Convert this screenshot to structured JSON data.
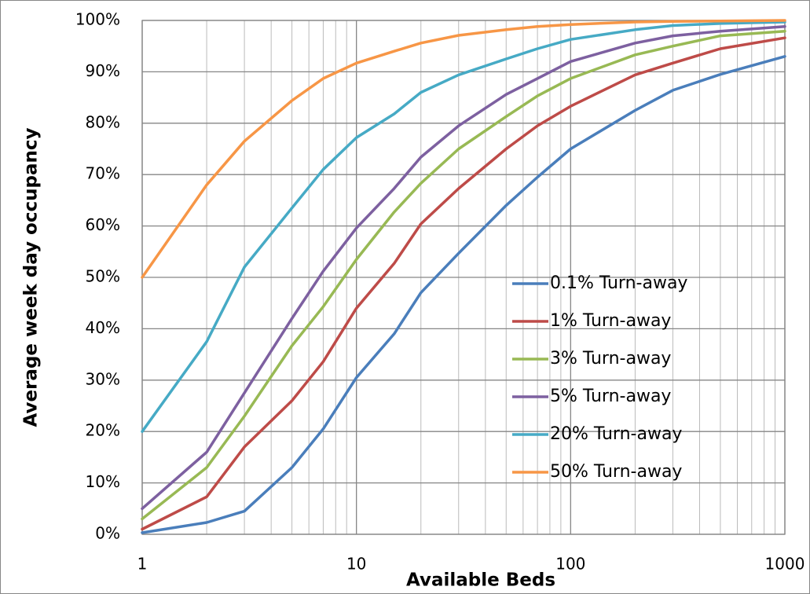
{
  "chart_data": {
    "type": "line",
    "xlabel": "Available Beds",
    "ylabel": "Average week day occupancy",
    "xscale": "log",
    "x": [
      1,
      2,
      3,
      5,
      7,
      10,
      15,
      20,
      30,
      50,
      70,
      100,
      200,
      300,
      500,
      1000
    ],
    "series": [
      {
        "name": "0.1% Turn-away",
        "color": "#4a7ebb",
        "values": [
          0.3,
          2.3,
          4.5,
          13,
          20.5,
          30.5,
          39,
          47,
          54.7,
          64,
          69.5,
          75,
          82.5,
          86.4,
          89.5,
          93
        ]
      },
      {
        "name": "1% Turn-away",
        "color": "#be4b48",
        "values": [
          1,
          7.3,
          17,
          26,
          33.6,
          44,
          52.7,
          60.4,
          67.3,
          75,
          79.5,
          83.3,
          89.4,
          91.7,
          94.5,
          96.6
        ]
      },
      {
        "name": "3% Turn-away",
        "color": "#98b954",
        "values": [
          3,
          13,
          23,
          36.7,
          44.3,
          53.5,
          62.7,
          68.3,
          75,
          81.3,
          85.3,
          88.7,
          93.3,
          95,
          97,
          97.9
        ]
      },
      {
        "name": "5% Turn-away",
        "color": "#7d60a0",
        "values": [
          5,
          16,
          27.5,
          42,
          51.2,
          59.6,
          67.3,
          73.4,
          79.5,
          85.6,
          88.7,
          92,
          95.6,
          97,
          97.9,
          98.8
        ]
      },
      {
        "name": "20% Turn-away",
        "color": "#46aac5",
        "values": [
          20,
          37.5,
          52,
          63.5,
          71,
          77.2,
          81.8,
          86,
          89.4,
          92.5,
          94.5,
          96.3,
          98.2,
          99,
          99.4,
          99.7
        ]
      },
      {
        "name": "50% Turn-away",
        "color": "#f79646",
        "values": [
          50,
          68,
          76.5,
          84.4,
          88.7,
          91.7,
          94,
          95.6,
          97.1,
          98.2,
          98.8,
          99.2,
          99.7,
          99.8,
          99.9,
          100
        ]
      }
    ],
    "xlim": [
      1,
      1000
    ],
    "ylim": [
      0,
      100
    ],
    "xticks": [
      1,
      10,
      100,
      1000
    ],
    "xminorticks": [
      2,
      3,
      4,
      5,
      6,
      7,
      8,
      9,
      20,
      30,
      40,
      50,
      60,
      70,
      80,
      90,
      200,
      300,
      400,
      500,
      600,
      700,
      800,
      900
    ],
    "yticks": [
      {
        "value": 0,
        "label": "0%"
      },
      {
        "value": 10,
        "label": "10%"
      },
      {
        "value": 20,
        "label": "20%"
      },
      {
        "value": 30,
        "label": "30%"
      },
      {
        "value": 40,
        "label": "40%"
      },
      {
        "value": 50,
        "label": "50%"
      },
      {
        "value": 60,
        "label": "60%"
      },
      {
        "value": 70,
        "label": "70%"
      },
      {
        "value": 80,
        "label": "80%"
      },
      {
        "value": 90,
        "label": "90%"
      },
      {
        "value": 100,
        "label": "100%"
      }
    ],
    "grid": true,
    "legend": "lower right"
  }
}
